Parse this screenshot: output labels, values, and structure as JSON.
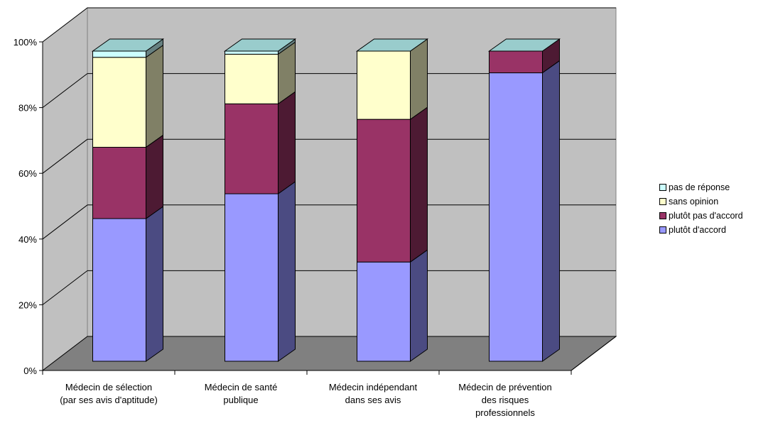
{
  "chart_data": {
    "type": "bar",
    "stacked": "percent",
    "view": "3d",
    "categories": [
      [
        "Médecin de sélection",
        "(par ses avis d'aptitude)"
      ],
      [
        "Médecin de santé",
        "publique"
      ],
      [
        "Médecin indépendant",
        "dans ses avis"
      ],
      [
        "Médecin de prévention",
        "des risques",
        "professionnels"
      ]
    ],
    "series": [
      {
        "name": "plutôt d'accord",
        "values": [
          46,
          54,
          32,
          93
        ],
        "color": "#9999FF",
        "side_color": "#4B4B82"
      },
      {
        "name": "plutôt pas d'accord",
        "values": [
          23,
          29,
          46,
          7
        ],
        "color": "#993366",
        "side_color": "#4D1A33"
      },
      {
        "name": "sans opinion",
        "values": [
          29,
          16,
          22,
          0
        ],
        "color": "#FFFFCC",
        "side_color": "#808066"
      },
      {
        "name": "pas de réponse",
        "values": [
          2,
          1,
          0,
          0
        ],
        "color": "#CCFFFF",
        "side_color": "#668080"
      }
    ],
    "y_ticks": [
      "0%",
      "20%",
      "40%",
      "60%",
      "80%",
      "100%"
    ],
    "ylim": [
      0,
      100
    ],
    "grid": true,
    "legend_position": "right",
    "legend_order": [
      "pas de réponse",
      "sans opinion",
      "plutôt pas d'accord",
      "plutôt d'accord"
    ],
    "wall_color": "#C0C0C0",
    "floor_color": "#808080"
  }
}
